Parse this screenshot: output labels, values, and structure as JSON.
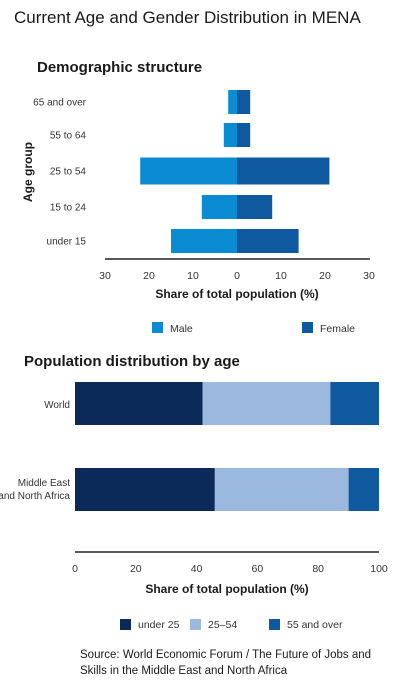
{
  "title": "Current Age and Gender Distribution in MENA",
  "source": "Source: World Economic Forum / The Future of Jobs and Skills in the Middle East and North Africa",
  "colors": {
    "male": "#0b8bd2",
    "female": "#0f5a9e",
    "under25": "#0b2a5a",
    "mid": "#9bb9df",
    "over55": "#0f5a9e"
  },
  "chart_data": [
    {
      "type": "bar",
      "orientation": "horizontal",
      "title": "Demographic structure",
      "xlabel": "Share of total population (%)",
      "ylabel": "Age group",
      "categories": [
        "65 and over",
        "55 to 64",
        "25 to 54",
        "15 to 24",
        "under 15"
      ],
      "series": [
        {
          "name": "Male",
          "values": [
            2,
            3,
            22,
            8,
            15
          ]
        },
        {
          "name": "Female",
          "values": [
            3,
            3,
            21,
            8,
            14
          ]
        }
      ],
      "xticks": [
        "30",
        "20",
        "10",
        "0",
        "10",
        "20",
        "30"
      ],
      "xlim": [
        -30,
        30
      ],
      "legend": "bottom"
    },
    {
      "type": "bar",
      "orientation": "horizontal",
      "stacked": true,
      "title": "Population distribution by age",
      "xlabel": "Share of total population (%)",
      "categories": [
        "World",
        "Middle East and North Africa"
      ],
      "series": [
        {
          "name": "under 25",
          "values": [
            42,
            46
          ]
        },
        {
          "name": "25–54",
          "values": [
            42,
            44
          ]
        },
        {
          "name": "55 and over",
          "values": [
            16,
            10
          ]
        }
      ],
      "xticks": [
        "0",
        "20",
        "40",
        "60",
        "80",
        "100"
      ],
      "xlim": [
        0,
        100
      ],
      "legend": "bottom"
    }
  ]
}
